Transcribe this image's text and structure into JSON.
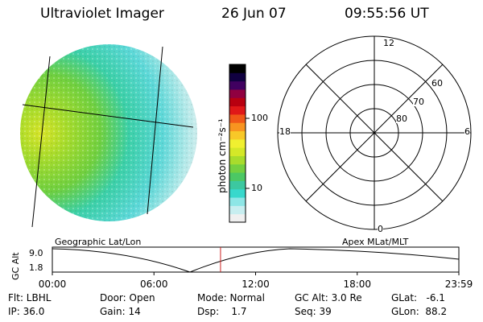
{
  "header": {
    "title": "Ultraviolet Imager",
    "date": "26 Jun 07",
    "time": "09:55:56 UT"
  },
  "colorbar": {
    "unit_label": "photon cm⁻²s⁻¹",
    "ticks": [
      "100",
      "10"
    ],
    "colors": [
      "#f0f0f0",
      "#c8eef0",
      "#8ee6e6",
      "#38d8cc",
      "#3cc8a0",
      "#4cc864",
      "#74d040",
      "#a8dc2c",
      "#d4e828",
      "#f0f030",
      "#f8c828",
      "#f89420",
      "#f05818",
      "#e01818",
      "#b80010",
      "#900040",
      "#400060",
      "#100040",
      "#000000"
    ]
  },
  "polar_plot": {
    "labels": [
      "12",
      "18",
      "6",
      "0",
      "60",
      "70",
      "80"
    ]
  },
  "timeline": {
    "left_label": "Geographic Lat/Lon",
    "right_label": "Apex MLat/MLT",
    "axis_title": "GC Alt",
    "y_max": "9.0",
    "y_min": "1.8",
    "current_time_marker_hours": 9.93,
    "time_ticks": [
      "00:00",
      "06:00",
      "12:00",
      "18:00",
      "23:59"
    ]
  },
  "info": {
    "flt": "Flt: LBHL",
    "ip": "IP: 36.0",
    "door": "Door: Open",
    "gain": "Gain: 14",
    "mode": "Mode: Normal",
    "dsp": "Dsp:    1.7",
    "gcalt": "GC Alt: 3.0 Re",
    "seq": "Seq: 39",
    "glat": "GLat:   -6.1",
    "glon": "GLon:  88.2"
  },
  "colors": {
    "marker": "#cc2222",
    "line": "#000000"
  }
}
